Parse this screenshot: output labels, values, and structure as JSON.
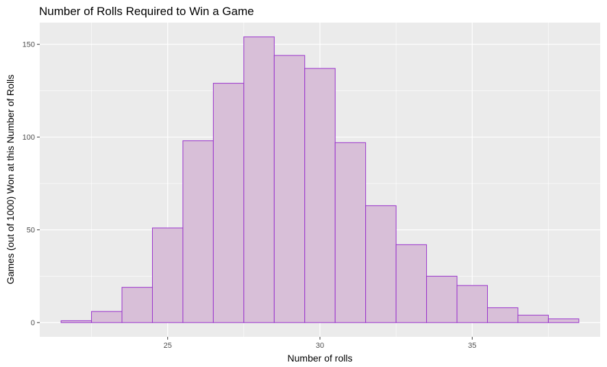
{
  "chart_data": {
    "type": "bar",
    "title": "Number of Rolls Required to Win a Game",
    "xlabel": "Number of rolls",
    "ylabel": "Games (out of 1000) Won at this Number of Rolls",
    "x": [
      22,
      23,
      24,
      25,
      26,
      27,
      28,
      29,
      30,
      31,
      32,
      33,
      34,
      35,
      36,
      37,
      38
    ],
    "values": [
      1,
      6,
      19,
      51,
      98,
      129,
      154,
      144,
      137,
      97,
      63,
      42,
      25,
      20,
      8,
      4,
      2
    ],
    "bin_width": 1,
    "xlim": [
      20.8,
      39.2
    ],
    "ylim": [
      -7.7,
      161.7
    ],
    "x_ticks": [
      25,
      30,
      35
    ],
    "x_tick_labels": [
      "25",
      "30",
      "35"
    ],
    "y_ticks": [
      0,
      50,
      100,
      150
    ],
    "y_tick_labels": [
      "0",
      "50",
      "100",
      "150"
    ],
    "grid": true,
    "colors": {
      "panel_background": "#EBEBEB",
      "grid_major": "#FFFFFF",
      "bar_fill": "#D8BFD8",
      "bar_outline": "#9932CC",
      "tick_text": "#4D4D4D"
    }
  }
}
